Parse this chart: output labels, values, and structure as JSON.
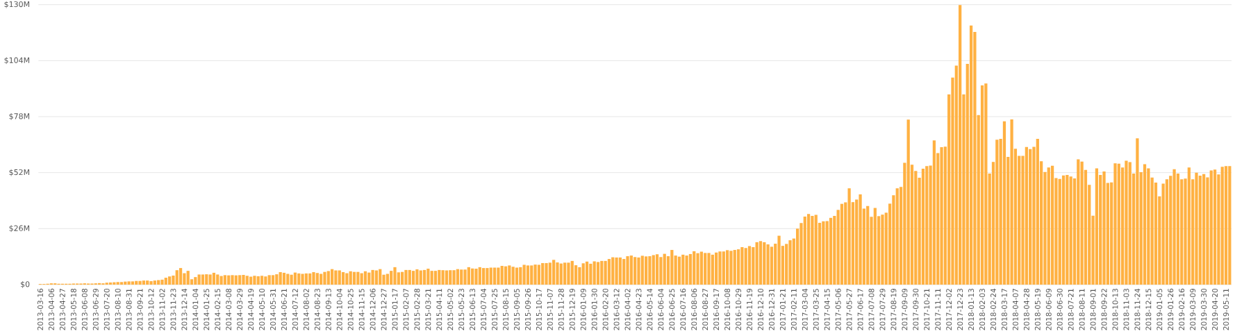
{
  "chart_data": {
    "type": "bar",
    "categories": [
      "2013-03-16",
      null,
      null,
      "2013-04-06",
      null,
      null,
      "2013-04-27",
      null,
      null,
      "2013-05-18",
      null,
      null,
      "2013-06-08",
      null,
      null,
      "2013-06-29",
      null,
      null,
      "2013-07-20",
      null,
      null,
      "2013-08-10",
      null,
      null,
      "2013-08-31",
      null,
      null,
      "2013-09-21",
      null,
      null,
      "2013-10-12",
      null,
      null,
      "2013-11-02",
      null,
      null,
      "2013-11-23",
      null,
      null,
      "2013-12-14",
      null,
      null,
      "2014-01-04",
      null,
      null,
      "2014-01-25",
      null,
      null,
      "2014-02-15",
      null,
      null,
      "2014-03-08",
      null,
      null,
      "2014-03-29",
      null,
      null,
      "2014-04-19",
      null,
      null,
      "2014-05-10",
      null,
      null,
      "2014-05-31",
      null,
      null,
      "2014-06-21",
      null,
      null,
      "2014-07-12",
      null,
      null,
      "2014-08-02",
      null,
      null,
      "2014-08-23",
      null,
      null,
      "2014-09-13",
      null,
      null,
      "2014-10-04",
      null,
      null,
      "2014-10-25",
      null,
      null,
      "2014-11-15",
      null,
      null,
      "2014-12-06",
      null,
      null,
      "2014-12-27",
      null,
      null,
      "2015-01-17",
      null,
      null,
      "2015-02-07",
      null,
      null,
      "2015-02-28",
      null,
      null,
      "2015-03-21",
      null,
      null,
      "2015-04-11",
      null,
      null,
      "2015-05-02",
      null,
      null,
      "2015-05-23",
      null,
      null,
      "2015-06-13",
      null,
      null,
      "2015-07-04",
      null,
      null,
      "2015-07-25",
      null,
      null,
      "2015-08-15",
      null,
      null,
      "2015-09-05",
      null,
      null,
      "2015-09-26",
      null,
      null,
      "2015-10-17",
      null,
      null,
      "2015-11-07",
      null,
      null,
      "2015-11-28",
      null,
      null,
      "2015-12-19",
      null,
      null,
      "2016-01-09",
      null,
      null,
      "2016-01-30",
      null,
      null,
      "2016-02-20",
      null,
      null,
      "2016-03-12",
      null,
      null,
      "2016-04-02",
      null,
      null,
      "2016-04-23",
      null,
      null,
      "2016-05-14",
      null,
      null,
      "2016-06-04",
      null,
      null,
      "2016-06-25",
      null,
      null,
      "2016-07-16",
      null,
      null,
      "2016-08-06",
      null,
      null,
      "2016-08-27",
      null,
      null,
      "2016-09-17",
      null,
      null,
      "2016-10-08",
      null,
      null,
      "2016-10-29",
      null,
      null,
      "2016-11-19",
      null,
      null,
      "2016-12-10",
      null,
      null,
      "2016-12-31",
      null,
      null,
      "2017-01-21",
      null,
      null,
      "2017-02-11",
      null,
      null,
      "2017-03-04",
      null,
      null,
      "2017-03-25",
      null,
      null,
      "2017-04-15",
      null,
      null,
      "2017-05-06",
      null,
      null,
      "2017-05-27",
      null,
      null,
      "2017-06-17",
      null,
      null,
      "2017-07-08",
      null,
      null,
      "2017-07-29",
      null,
      null,
      "2017-08-19",
      null,
      null,
      "2017-09-09",
      null,
      null,
      "2017-09-30",
      null,
      null,
      "2017-10-21",
      null,
      null,
      "2017-11-11",
      null,
      null,
      "2017-12-02",
      null,
      null,
      "2017-12-23",
      null,
      null,
      "2018-01-13",
      null,
      null,
      "2018-02-03",
      null,
      null,
      "2018-02-24",
      null,
      null,
      "2018-03-17",
      null,
      null,
      "2018-04-07",
      null,
      null,
      "2018-04-28",
      null,
      null,
      "2018-05-19",
      null,
      null,
      "2018-06-09",
      null,
      null,
      "2018-06-30",
      null,
      null,
      "2018-07-21",
      null,
      null,
      "2018-08-11",
      null,
      null,
      "2018-09-01",
      null,
      null,
      "2018-09-22",
      null,
      null,
      "2018-10-13",
      null,
      null,
      "2018-11-03",
      null,
      null,
      "2018-11-24",
      null,
      null,
      "2018-12-15",
      null,
      null,
      "2019-01-05",
      null,
      null,
      "2019-01-26",
      null,
      null,
      "2019-02-16",
      null,
      null,
      "2019-03-09",
      null,
      null,
      "2019-03-30",
      null,
      null,
      "2019-04-20",
      null,
      null,
      "2019-05-11",
      null
    ],
    "values": [
      0.3,
      0.3,
      0.4,
      0.6,
      0.6,
      0.4,
      0.4,
      0.4,
      0.4,
      0.5,
      0.5,
      0.5,
      0.6,
      0.5,
      0.5,
      0.6,
      0.7,
      0.6,
      0.9,
      1.0,
      1.1,
      1.2,
      1.2,
      1.4,
      1.5,
      1.5,
      1.7,
      1.7,
      1.9,
      1.9,
      1.6,
      1.9,
      2.1,
      2.3,
      3.2,
      3.8,
      4.2,
      6.7,
      7.7,
      5.3,
      6.4,
      2.5,
      3.5,
      4.7,
      4.7,
      4.8,
      4.7,
      5.5,
      4.7,
      4.0,
      4.4,
      4.3,
      4.4,
      4.3,
      4.4,
      4.5,
      4.1,
      3.7,
      4.1,
      3.9,
      4.1,
      3.8,
      4.4,
      4.4,
      4.8,
      5.8,
      5.5,
      5.0,
      4.6,
      5.6,
      5.2,
      5.0,
      5.2,
      5.2,
      5.8,
      5.4,
      5.0,
      5.9,
      6.3,
      7.2,
      6.6,
      6.6,
      5.8,
      5.3,
      6.2,
      5.9,
      5.9,
      5.3,
      6.2,
      5.6,
      6.8,
      6.6,
      7.2,
      4.6,
      5.0,
      6.4,
      8.1,
      5.7,
      5.9,
      6.8,
      6.8,
      6.4,
      7.1,
      6.6,
      6.8,
      7.4,
      6.4,
      6.4,
      6.8,
      6.7,
      6.6,
      6.7,
      6.7,
      7.2,
      7.0,
      7.0,
      8.1,
      7.5,
      7.4,
      8.1,
      7.7,
      7.7,
      7.9,
      7.9,
      7.9,
      8.7,
      8.5,
      8.9,
      8.3,
      7.9,
      8.1,
      9.2,
      8.9,
      8.9,
      9.3,
      9.2,
      10.0,
      10.0,
      10.2,
      11.5,
      10.3,
      9.8,
      10.2,
      10.2,
      11.0,
      9.0,
      8.1,
      9.9,
      10.7,
      9.7,
      10.8,
      10.5,
      11.0,
      11.0,
      11.9,
      12.7,
      12.6,
      12.6,
      11.9,
      13.2,
      13.5,
      12.8,
      12.6,
      13.4,
      13.1,
      13.2,
      13.7,
      14.1,
      12.8,
      14.3,
      13.2,
      16.1,
      13.5,
      13.0,
      13.9,
      13.5,
      14.2,
      15.5,
      14.6,
      15.3,
      14.7,
      14.7,
      13.9,
      14.9,
      15.4,
      15.4,
      16.0,
      15.7,
      16.1,
      16.4,
      17.4,
      17.0,
      17.9,
      17.4,
      19.7,
      20.2,
      19.7,
      18.7,
      17.6,
      19.0,
      22.7,
      18.0,
      18.9,
      20.6,
      21.4,
      26.0,
      28.6,
      31.6,
      32.8,
      31.9,
      32.4,
      28.7,
      29.4,
      29.5,
      31.0,
      31.9,
      34.7,
      37.5,
      38.2,
      44.7,
      38.3,
      39.5,
      41.9,
      35.3,
      36.5,
      31.5,
      35.6,
      31.8,
      32.5,
      33.4,
      37.6,
      41.5,
      44.7,
      45.4,
      56.6,
      76.6,
      55.7,
      52.8,
      49.6,
      53.8,
      55.0,
      55.3,
      67.0,
      61.1,
      63.8,
      64.1,
      88.3,
      96.1,
      101.7,
      129.8,
      88.3,
      102.5,
      120.3,
      117.3,
      78.7,
      92.5,
      93.4,
      51.6,
      57.0,
      67.3,
      67.7,
      75.8,
      59.3,
      76.7,
      63.1,
      59.8,
      59.8,
      63.9,
      62.9,
      64.0,
      67.7,
      57.3,
      52.3,
      54.4,
      55.2,
      49.5,
      49.1,
      50.7,
      50.9,
      50.2,
      49.3,
      58.2,
      57.1,
      53.3,
      46.3,
      32.0,
      54.0,
      50.9,
      52.5,
      47.2,
      47.5,
      56.3,
      56.2,
      54.4,
      57.5,
      56.9,
      51.6,
      67.9,
      52.2,
      55.9,
      54.0,
      49.7,
      47.4,
      41.0,
      46.9,
      48.9,
      50.5,
      53.6,
      51.6,
      48.9,
      49.2,
      54.4,
      48.9,
      52.0,
      50.6,
      51.3,
      49.8,
      53.0,
      53.4,
      51.2,
      54.7,
      55.0,
      55.0
    ],
    "color": "#ffb142",
    "ylim": [
      0,
      130
    ],
    "yticks": [
      {
        "value": 0,
        "label": "$0"
      },
      {
        "value": 26,
        "label": "$26M"
      },
      {
        "value": 52,
        "label": "$52M"
      },
      {
        "value": 78,
        "label": "$78M"
      },
      {
        "value": 104,
        "label": "$104M"
      },
      {
        "value": 130,
        "label": "$130M"
      }
    ],
    "grid": "y"
  }
}
